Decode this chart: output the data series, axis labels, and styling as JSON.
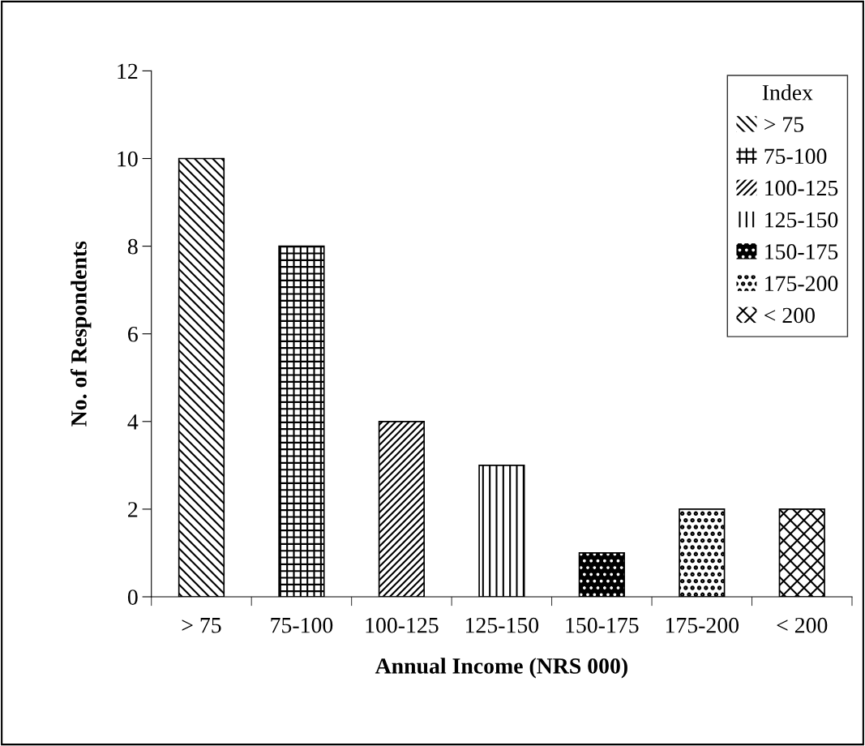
{
  "chart_data": {
    "type": "bar",
    "categories": [
      "> 75",
      "75-100",
      "100-125",
      "125-150",
      "150-175",
      "175-200",
      "< 200"
    ],
    "series": [
      {
        "name": "> 75",
        "color": "#ffffff",
        "values": [
          10,
          null,
          null,
          null,
          null,
          null,
          null
        ]
      },
      {
        "name": "75-100",
        "color": "#ffffff",
        "values": [
          null,
          8,
          null,
          null,
          null,
          null,
          null
        ]
      },
      {
        "name": "100-125",
        "color": "#ffffff",
        "values": [
          null,
          null,
          4,
          null,
          null,
          null,
          null
        ]
      },
      {
        "name": "125-150",
        "color": "#ffffff",
        "values": [
          null,
          null,
          null,
          3,
          null,
          null,
          null
        ]
      },
      {
        "name": "150-175",
        "color": "#000000",
        "values": [
          null,
          null,
          null,
          null,
          1,
          null,
          null
        ]
      },
      {
        "name": "175-200",
        "color": "#ffffff",
        "values": [
          null,
          null,
          null,
          null,
          null,
          2,
          null
        ]
      },
      {
        "name": "< 200",
        "color": "#ffffff",
        "values": [
          null,
          null,
          null,
          null,
          null,
          null,
          2
        ]
      }
    ],
    "xlabel": "Annual Income (NRS 000)",
    "ylabel": "No. of Respondents",
    "ylim": [
      0,
      12
    ],
    "yticks": [
      0,
      2,
      4,
      6,
      8,
      10,
      12
    ],
    "legend": "top right",
    "legend_title": "Index",
    "grid": false
  }
}
